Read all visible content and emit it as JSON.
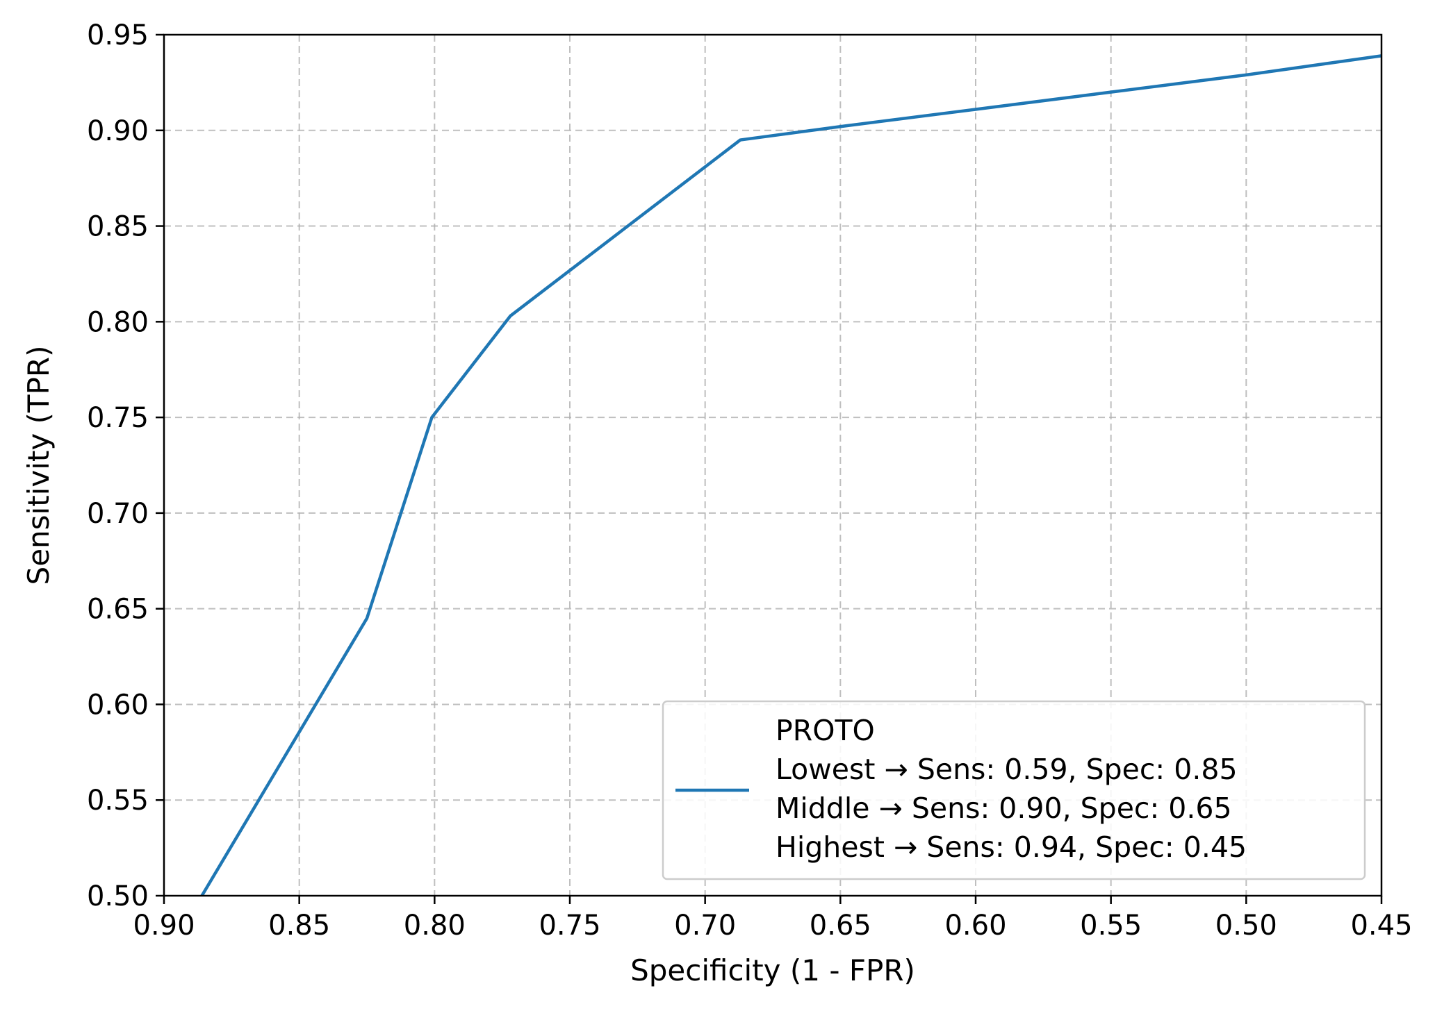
{
  "chart_data": {
    "type": "line",
    "title": "",
    "xlabel": "Specificity (1 - FPR)",
    "ylabel": "Sensitivity (TPR)",
    "xlim": [
      0.9,
      0.45
    ],
    "ylim": [
      0.5,
      0.95
    ],
    "x_axis_reversed": true,
    "grid": true,
    "xticks": [
      "0.90",
      "0.85",
      "0.80",
      "0.75",
      "0.70",
      "0.65",
      "0.60",
      "0.55",
      "0.50",
      "0.45"
    ],
    "yticks": [
      "0.50",
      "0.55",
      "0.60",
      "0.65",
      "0.70",
      "0.75",
      "0.80",
      "0.85",
      "0.90",
      "0.95"
    ],
    "legend_position": "bottom-right",
    "series": [
      {
        "name": "PROTO",
        "color": "#1f77b4",
        "x": [
          0.886,
          0.825,
          0.801,
          0.772,
          0.687,
          0.65,
          0.6,
          0.55,
          0.5,
          0.45
        ],
        "y": [
          0.5,
          0.645,
          0.75,
          0.803,
          0.895,
          0.902,
          0.911,
          0.92,
          0.929,
          0.939
        ]
      }
    ],
    "legend": {
      "entries": [
        "PROTO",
        "Lowest → Sens: 0.59, Spec: 0.85",
        "Middle → Sens: 0.90, Spec: 0.65",
        "Highest → Sens: 0.94, Spec: 0.45"
      ]
    }
  }
}
